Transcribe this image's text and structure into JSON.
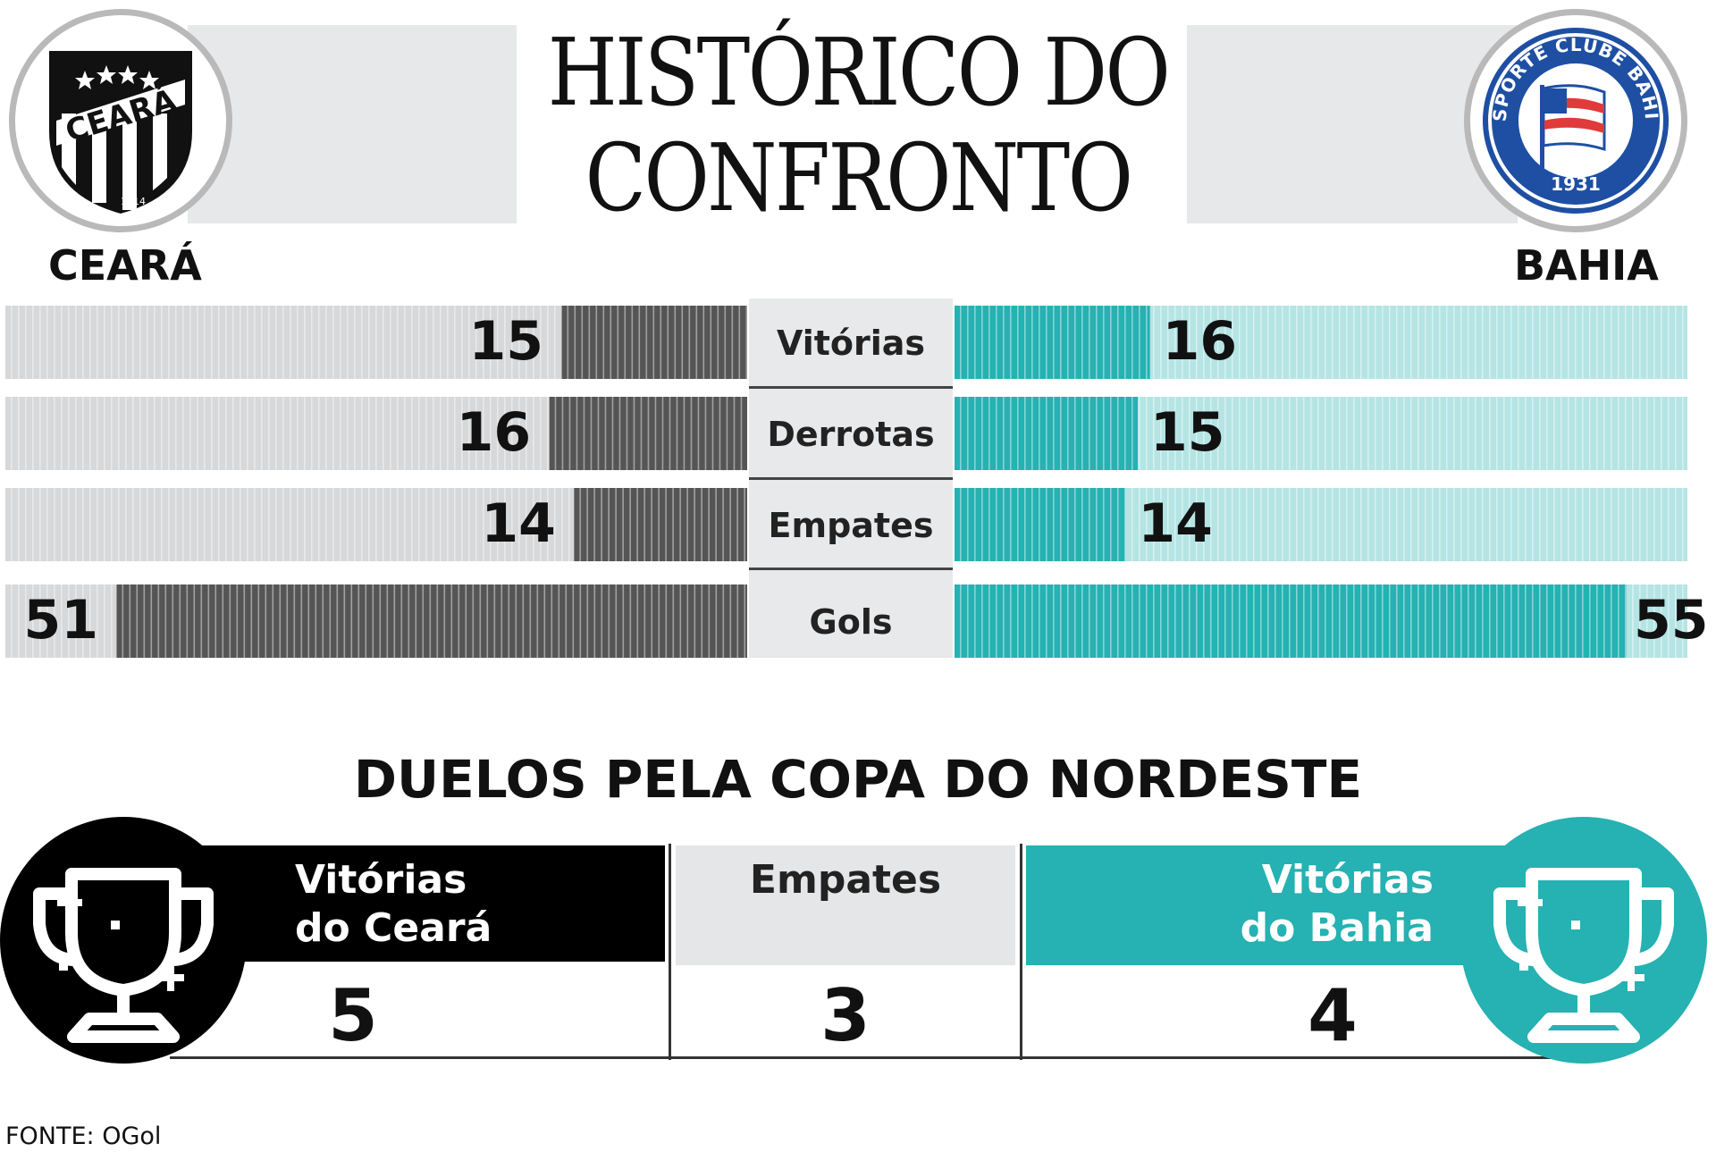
{
  "header": {
    "title_line1": "HISTÓRICO DO",
    "title_line2": "CONFRONTO"
  },
  "teams": {
    "home": {
      "name": "CEARÁ",
      "crest_text": "CEARÁ",
      "crest_year": "1914",
      "color": "#555555",
      "light_color": "#d7d8d9"
    },
    "away": {
      "name": "BAHIA",
      "crest_text": "ESPORTE CLUBE BAHIA",
      "crest_year": "1931",
      "color": "#26b1b2",
      "light_color": "#b5e4e4"
    }
  },
  "chart_data": {
    "type": "bar",
    "orientation": "diverging-horizontal",
    "categories": [
      "Vitórias",
      "Derrotas",
      "Empates",
      "Gols"
    ],
    "series": [
      {
        "name": "CEARÁ",
        "values": [
          15,
          16,
          14,
          51
        ]
      },
      {
        "name": "BAHIA",
        "values": [
          16,
          15,
          14,
          55
        ]
      }
    ],
    "scale_max": [
      60,
      60,
      60,
      60
    ]
  },
  "copa": {
    "title": "DUELOS PELA COPA DO NORDESTE",
    "home_wins_label_1": "Vitórias",
    "home_wins_label_2": "do Ceará",
    "home_wins": "5",
    "draws_label": "Empates",
    "draws": "3",
    "away_wins_label_1": "Vitórias",
    "away_wins_label_2": "do Bahia",
    "away_wins": "4",
    "icon": "trophy-icon"
  },
  "source": "FONTE: OGol"
}
